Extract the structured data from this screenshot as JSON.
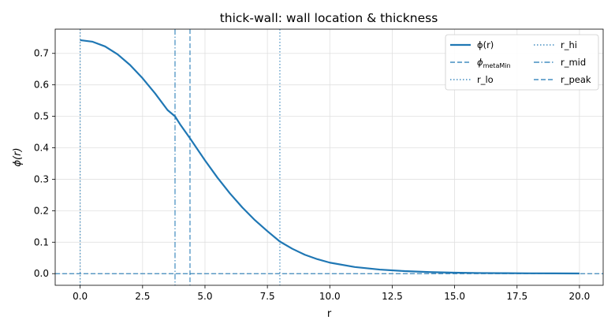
{
  "chart_data": {
    "type": "line",
    "title": "thick-wall: wall location & thickness",
    "xlabel": "r",
    "ylabel": "ϕ(r)",
    "xlim": [
      -1.0,
      20.95
    ],
    "ylim": [
      -0.037,
      0.777
    ],
    "grid": true,
    "xticks": [
      0.0,
      2.5,
      5.0,
      7.5,
      10.0,
      12.5,
      15.0,
      17.5,
      20.0
    ],
    "yticks": [
      0.0,
      0.1,
      0.2,
      0.3,
      0.4,
      0.5,
      0.6,
      0.7
    ],
    "xtick_labels": [
      "0.0",
      "2.5",
      "5.0",
      "7.5",
      "10.0",
      "12.5",
      "15.0",
      "17.5",
      "20.0"
    ],
    "ytick_labels": [
      "0.0",
      "0.1",
      "0.2",
      "0.3",
      "0.4",
      "0.5",
      "0.6",
      "0.7"
    ],
    "series": [
      {
        "name": "ϕ(r)",
        "style": "solid",
        "color": "#1f77b4",
        "x": [
          0.0,
          0.5,
          1.0,
          1.5,
          2.0,
          2.5,
          3.0,
          3.5,
          3.8,
          4.0,
          4.4,
          5.0,
          5.5,
          6.0,
          6.5,
          7.0,
          7.5,
          8.0,
          8.5,
          9.0,
          9.5,
          10.0,
          11.0,
          12.0,
          13.0,
          14.0,
          15.0,
          16.0,
          17.0,
          18.0,
          19.0,
          20.0
        ],
        "y": [
          0.742,
          0.737,
          0.722,
          0.697,
          0.663,
          0.621,
          0.573,
          0.52,
          0.5,
          0.475,
          0.43,
          0.36,
          0.305,
          0.255,
          0.21,
          0.17,
          0.135,
          0.102,
          0.079,
          0.06,
          0.046,
          0.035,
          0.021,
          0.013,
          0.008,
          0.005,
          0.003,
          0.002,
          0.0015,
          0.001,
          0.0008,
          0.0006
        ]
      }
    ],
    "reference_lines": [
      {
        "name": "ϕ_metaMin",
        "orientation": "horizontal",
        "value": 0.0,
        "style": "dashed"
      },
      {
        "name": "r_lo",
        "orientation": "vertical",
        "value": 0.0,
        "style": "dotted"
      },
      {
        "name": "r_hi",
        "orientation": "vertical",
        "value": 8.0,
        "style": "dotted"
      },
      {
        "name": "r_mid",
        "orientation": "vertical",
        "value": 3.8,
        "style": "dashdot"
      },
      {
        "name": "r_peak",
        "orientation": "vertical",
        "value": 4.4,
        "style": "dashed"
      }
    ],
    "legend": {
      "placement": "top-right",
      "entries": [
        {
          "label": "ϕ(r)",
          "style": "solid"
        },
        {
          "label": "ϕ",
          "sub": "metaMin",
          "style": "dashed"
        },
        {
          "label": "r_lo",
          "style": "dotted"
        },
        {
          "label": "r_hi",
          "style": "dotted"
        },
        {
          "label": "r_mid",
          "style": "dashdot"
        },
        {
          "label": "r_peak",
          "style": "dashed"
        }
      ]
    }
  }
}
